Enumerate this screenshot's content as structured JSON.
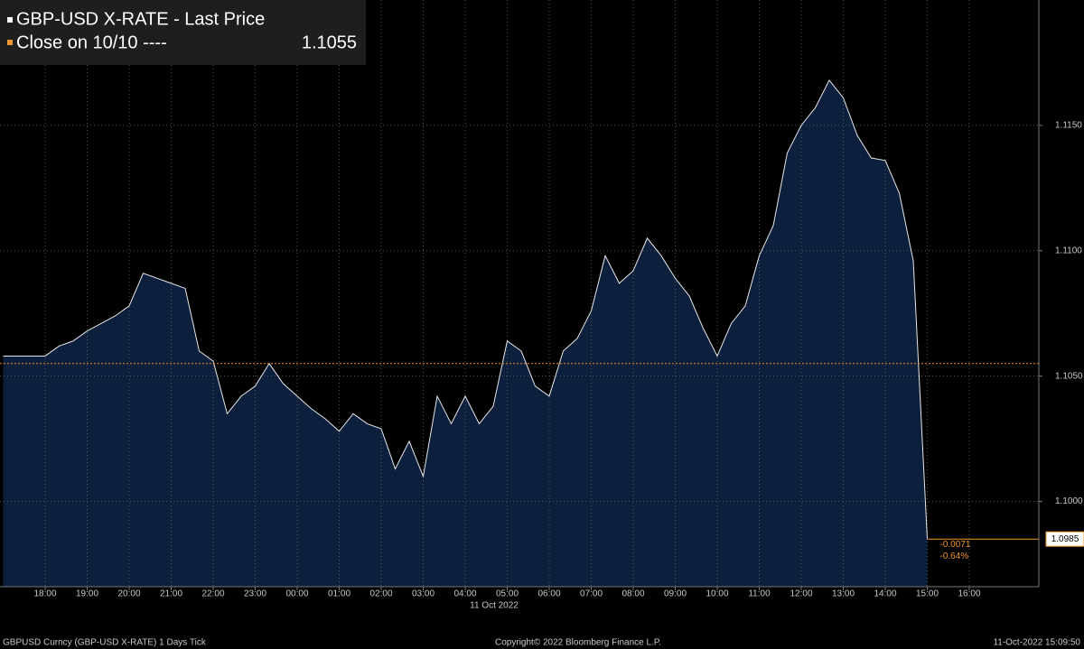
{
  "chart_data": {
    "type": "area",
    "series": [
      {
        "name": "GBP-USD X-RATE - Last Price",
        "color": "#e8e8e8",
        "fill": "#0c1f3c",
        "values": [
          1.1058,
          1.1058,
          1.1058,
          1.1058,
          1.1062,
          1.1064,
          1.1068,
          1.1071,
          1.1074,
          1.1078,
          1.1091,
          1.1089,
          1.1087,
          1.1085,
          1.106,
          1.1056,
          1.1035,
          1.1042,
          1.1046,
          1.1055,
          1.1047,
          1.1042,
          1.1037,
          1.1033,
          1.1028,
          1.1035,
          1.1031,
          1.1029,
          1.1013,
          1.1024,
          1.101,
          1.1042,
          1.1031,
          1.1042,
          1.1031,
          1.1038,
          1.1064,
          1.106,
          1.1046,
          1.1042,
          1.106,
          1.1065,
          1.1076,
          1.1098,
          1.1087,
          1.1092,
          1.1105,
          1.1098,
          1.1089,
          1.1082,
          1.1069,
          1.1058,
          1.1071,
          1.1078,
          1.1098,
          1.111,
          1.1139,
          1.115,
          1.1157,
          1.1168,
          1.1161,
          1.1146,
          1.1137,
          1.1136,
          1.1123,
          1.1096,
          1.0985,
          null,
          null,
          null
        ]
      }
    ],
    "categories": [
      null,
      null,
      null,
      "18:00",
      null,
      null,
      "19:00",
      null,
      null,
      "20:00",
      null,
      null,
      "21:00",
      null,
      null,
      "22:00",
      null,
      null,
      "23:00",
      null,
      null,
      "00:00",
      null,
      null,
      "01:00",
      null,
      null,
      "02:00",
      null,
      null,
      "03:00",
      null,
      null,
      "04:00",
      null,
      null,
      "05:00",
      null,
      null,
      "06:00",
      null,
      null,
      "07:00",
      null,
      null,
      "08:00",
      null,
      null,
      "09:00",
      null,
      null,
      "10:00",
      null,
      null,
      "11:00",
      null,
      null,
      "12:00",
      null,
      null,
      "13:00",
      null,
      null,
      "14:00",
      null,
      null,
      "15:00",
      null,
      null,
      "16:00"
    ],
    "date_label": "11 Oct 2022",
    "reference_line": {
      "name": "Close on 10/10 ----",
      "value": 1.1055,
      "color": "#f0962e"
    },
    "last_value": 1.0985,
    "change": -0.0071,
    "change_pct": {
      "value": -0.64,
      "label": "-0.64%"
    },
    "ylim": [
      1.0966,
      1.12
    ],
    "yticks": [
      {
        "value": 1.1,
        "label": "1.1000"
      },
      {
        "value": 1.105,
        "label": "1.1050"
      },
      {
        "value": 1.11,
        "label": "1.1100"
      },
      {
        "value": 1.115,
        "label": "1.1150"
      }
    ],
    "grid": true
  },
  "footer": {
    "left": "GBPUSD Curncy (GBP-USD X-RATE) 1 Days  Tick",
    "center": "Copyright© 2022 Bloomberg Finance L.P.",
    "right": "11-Oct-2022 15:09:50"
  }
}
